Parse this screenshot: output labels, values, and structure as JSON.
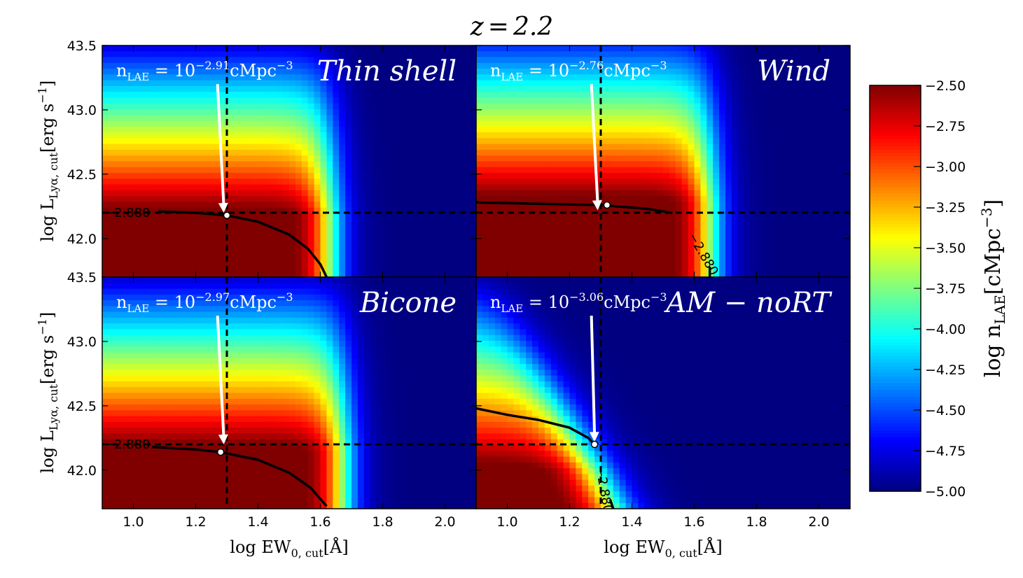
{
  "figure": {
    "title": "z = 2.2",
    "title_prefix": "z",
    "title_value": "2.2"
  },
  "colorbar": {
    "label_prefix": "log n",
    "label_sub": "LAE",
    "label_unit": "[cMpc",
    "label_unit_exp": "−3",
    "label_unit_close": "]",
    "vmin": -5.0,
    "vmax": -2.5,
    "ticks": [
      "−2.50",
      "−2.75",
      "−3.00",
      "−3.25",
      "−3.50",
      "−3.75",
      "−4.00",
      "−4.25",
      "−4.50",
      "−4.75",
      "−5.00"
    ],
    "tick_values": [
      -2.5,
      -2.75,
      -3.0,
      -3.25,
      -3.5,
      -3.75,
      -4.0,
      -4.25,
      -4.5,
      -4.75,
      -5.0
    ],
    "colormap": "jet"
  },
  "axes": {
    "xlabel_prefix": "log EW",
    "xlabel_sub": "0, cut",
    "xlabel_unit": "[Å]",
    "ylabel_prefix": "log L",
    "ylabel_sub": "Lyα, cut",
    "ylabel_unit": "[erg s",
    "ylabel_unit_exp": "−1",
    "ylabel_unit_close": "]",
    "xticks": [
      "1.0",
      "1.2",
      "1.4",
      "1.6",
      "1.8",
      "2.0"
    ],
    "xtick_values": [
      1.0,
      1.2,
      1.4,
      1.6,
      1.8,
      2.0
    ],
    "yticks_top": [
      "43.5",
      "43.0",
      "42.5",
      "42.0"
    ],
    "ytick_values_top": [
      43.5,
      43.0,
      42.5,
      42.0
    ],
    "yticks_bottom": [
      "43.5",
      "43.0",
      "42.5",
      "42.0"
    ],
    "ytick_values_bottom": [
      43.5,
      43.0,
      42.5,
      42.0
    ],
    "xlim": [
      0.9,
      2.1
    ],
    "ylim": [
      41.7,
      43.5
    ]
  },
  "chart_data": [
    {
      "type": "heatmap",
      "title": "Thin shell",
      "annotation_prefix": "n",
      "annotation_sub": "LAE",
      "annotation_base": " = 10",
      "annotation_exp": "−2.91",
      "annotation_unit": "cMpc",
      "annotation_unit_exp": "−3",
      "contour_level": -2.88,
      "contour_label": "2.880",
      "contour_label_prefix": "−",
      "ew_cut": 1.3,
      "l_cut": 42.2,
      "best_point": [
        1.3,
        42.18
      ],
      "arrow_start": [
        1.27,
        43.2
      ],
      "arrow_end": [
        1.29,
        42.2
      ],
      "x_edge": 1.63,
      "y_scale": 42.18,
      "contour_curve": [
        [
          1.08,
          42.21
        ],
        [
          1.2,
          42.2
        ],
        [
          1.3,
          42.18
        ],
        [
          1.4,
          42.13
        ],
        [
          1.5,
          42.03
        ],
        [
          1.56,
          41.92
        ],
        [
          1.6,
          41.8
        ],
        [
          1.62,
          41.7
        ]
      ]
    },
    {
      "type": "heatmap",
      "title": "Wind",
      "annotation_prefix": "n",
      "annotation_sub": "LAE",
      "annotation_base": " = 10",
      "annotation_exp": "−2.76",
      "annotation_unit": "cMpc",
      "annotation_unit_exp": "−3",
      "contour_level": -2.88,
      "contour_label": "2.880",
      "contour_label_prefix": "−",
      "ew_cut": 1.3,
      "l_cut": 42.2,
      "best_point": [
        1.32,
        42.26
      ],
      "arrow_start": [
        1.27,
        43.2
      ],
      "arrow_end": [
        1.29,
        42.22
      ],
      "x_edge": 1.65,
      "y_scale": 42.28,
      "contour_curve": [
        [
          0.9,
          42.28
        ],
        [
          1.1,
          42.27
        ],
        [
          1.3,
          42.26
        ],
        [
          1.45,
          42.23
        ],
        [
          1.53,
          42.2
        ]
      ],
      "contour_curve_2": [
        [
          1.65,
          41.78
        ],
        [
          1.65,
          41.7
        ]
      ]
    },
    {
      "type": "heatmap",
      "title": "Bicone",
      "annotation_prefix": "n",
      "annotation_sub": "LAE",
      "annotation_base": " = 10",
      "annotation_exp": "−2.97",
      "annotation_unit": "cMpc",
      "annotation_unit_exp": "−3",
      "contour_level": -2.88,
      "contour_label": "2.880",
      "contour_label_prefix": "−",
      "ew_cut": 1.3,
      "l_cut": 42.2,
      "best_point": [
        1.28,
        42.14
      ],
      "arrow_start": [
        1.27,
        43.2
      ],
      "arrow_end": [
        1.29,
        42.2
      ],
      "x_edge": 1.67,
      "y_scale": 42.15,
      "contour_curve": [
        [
          1.06,
          42.18
        ],
        [
          1.2,
          42.16
        ],
        [
          1.28,
          42.14
        ],
        [
          1.4,
          42.08
        ],
        [
          1.5,
          41.98
        ],
        [
          1.57,
          41.86
        ],
        [
          1.62,
          41.72
        ]
      ]
    },
    {
      "type": "heatmap",
      "title": "AM − noRT",
      "annotation_prefix": "n",
      "annotation_sub": "LAE",
      "annotation_base": " = 10",
      "annotation_exp": "−3.06",
      "annotation_unit": "cMpc",
      "annotation_unit_exp": "−3",
      "contour_level": -2.88,
      "contour_label": "2.880",
      "contour_label_prefix": "−",
      "ew_cut": 1.3,
      "l_cut": 42.2,
      "best_point": [
        1.28,
        42.2
      ],
      "arrow_start": [
        1.27,
        43.2
      ],
      "arrow_end": [
        1.28,
        42.22
      ],
      "x_edge": 1.34,
      "y_scale": 42.0,
      "contour_curve": [
        [
          0.9,
          42.48
        ],
        [
          1.0,
          42.43
        ],
        [
          1.1,
          42.39
        ],
        [
          1.2,
          42.33
        ],
        [
          1.26,
          42.25
        ],
        [
          1.28,
          42.2
        ]
      ],
      "contour_curve_2": [
        [
          1.33,
          41.77
        ],
        [
          1.34,
          41.7
        ]
      ]
    }
  ]
}
